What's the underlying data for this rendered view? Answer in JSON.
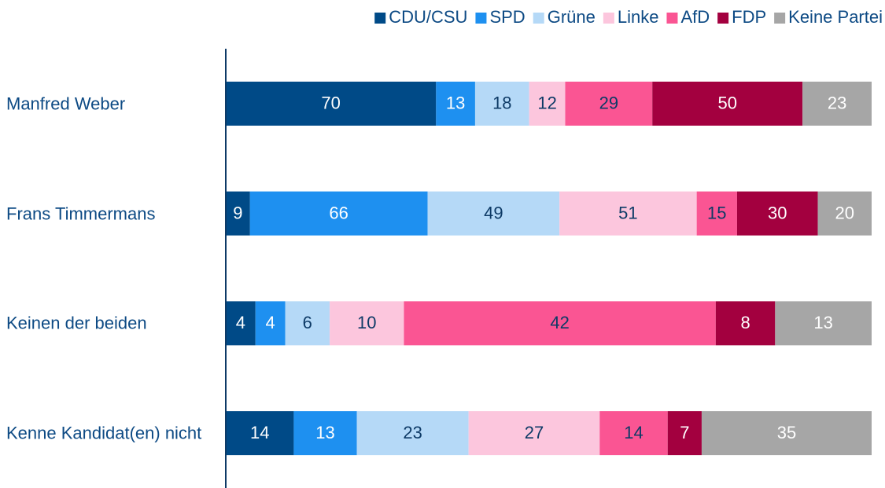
{
  "chart_data": {
    "type": "bar",
    "orientation": "horizontal",
    "stacking": "percent",
    "categories": [
      "Manfred Weber",
      "Frans Timmermans",
      "Keinen der beiden",
      "Kenne Kandidat(en) nicht"
    ],
    "series": [
      {
        "name": "CDU/CSU",
        "color": "#004a87",
        "label_color": "#ffffff",
        "values": [
          70,
          9,
          4,
          14
        ]
      },
      {
        "name": "SPD",
        "color": "#1e90f0",
        "label_color": "#ffffff",
        "values": [
          13,
          66,
          4,
          13
        ]
      },
      {
        "name": "Grüne",
        "color": "#b5d9f7",
        "label_color": "#0d3a66",
        "values": [
          18,
          49,
          6,
          23
        ]
      },
      {
        "name": "Linke",
        "color": "#fcc6dd",
        "label_color": "#0d3a66",
        "values": [
          12,
          51,
          10,
          27
        ]
      },
      {
        "name": "AfD",
        "color": "#fa5593",
        "label_color": "#0d3a66",
        "values": [
          29,
          15,
          42,
          14
        ]
      },
      {
        "name": "FDP",
        "color": "#a3003f",
        "label_color": "#ffffff",
        "values": [
          50,
          30,
          8,
          7
        ]
      },
      {
        "name": "Keine Partei",
        "color": "#a6a6a6",
        "label_color": "#ffffff",
        "values": [
          23,
          20,
          13,
          35
        ]
      }
    ],
    "legend": "top-right"
  }
}
